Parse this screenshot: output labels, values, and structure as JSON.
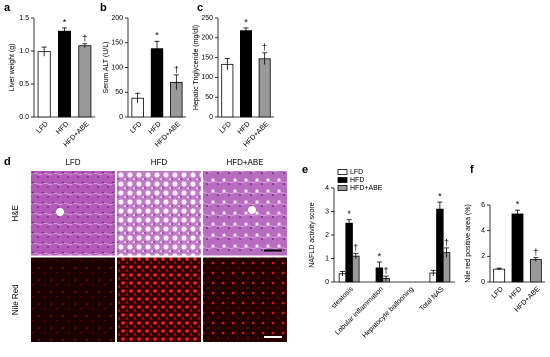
{
  "chart_data": [
    {
      "type": "bar",
      "panel": "a",
      "ylabel": "Liver weight (g)",
      "categories": [
        "LFD",
        "HFD",
        "HFD+ABE"
      ],
      "values": [
        0.99,
        1.3,
        1.08
      ],
      "errors": [
        0.07,
        0.05,
        0.03
      ],
      "annotations": [
        null,
        "*",
        "†"
      ],
      "colors": [
        "#ffffff",
        "#000000",
        "#999999"
      ],
      "ylim": [
        0,
        1.5
      ],
      "yticks": [
        {
          "value": 0,
          "label": "0.0"
        },
        0.5,
        {
          "value": 1,
          "label": "1.0"
        },
        1.5
      ]
    },
    {
      "type": "bar",
      "panel": "b",
      "ylabel": "Serum ALT (U/L)",
      "categories": [
        "LFD",
        "HFD",
        "HFD+ABE"
      ],
      "values": [
        38,
        138,
        70
      ],
      "errors": [
        10,
        15,
        15
      ],
      "annotations": [
        null,
        "*",
        "†"
      ],
      "colors": [
        "#ffffff",
        "#000000",
        "#999999"
      ],
      "ylim": [
        0,
        200
      ],
      "yticks": [
        0,
        50,
        100,
        150,
        200
      ]
    },
    {
      "type": "bar",
      "panel": "c",
      "ylabel": "Hepatic Triglyceride (mg/dl)",
      "categories": [
        "LFD",
        "HFD",
        "HFD+ABE"
      ],
      "values": [
        133,
        218,
        147
      ],
      "errors": [
        15,
        7,
        15
      ],
      "annotations": [
        null,
        "*",
        "†"
      ],
      "colors": [
        "#ffffff",
        "#000000",
        "#999999"
      ],
      "ylim": [
        0,
        250
      ],
      "yticks": [
        0,
        50,
        100,
        150,
        200,
        250
      ]
    },
    {
      "type": "image",
      "panel": "d",
      "columns": [
        "LFD",
        "HFD",
        "HFD+ABE"
      ],
      "rows": [
        "H&E",
        "Nile Red"
      ]
    },
    {
      "type": "grouped-bar",
      "panel": "e",
      "ylabel": "NAFLD activity score",
      "categories": [
        "steatosis",
        "Lobular inflammation",
        "Hepatocyte ballooning",
        "Total NAS"
      ],
      "series": [
        {
          "name": "LFD",
          "color": "#ffffff",
          "values": [
            0.35,
            0,
            0,
            0.38
          ],
          "errors": [
            0.1,
            0,
            0,
            0.12
          ],
          "annotations": [
            null,
            null,
            null,
            null
          ]
        },
        {
          "name": "HFD",
          "color": "#000000",
          "values": [
            2.5,
            0.6,
            0,
            3.1
          ],
          "errors": [
            0.15,
            0.25,
            0,
            0.3
          ],
          "annotations": [
            "*",
            "*",
            null,
            "*"
          ]
        },
        {
          "name": "HFD+ABE",
          "color": "#999999",
          "values": [
            1.1,
            0.15,
            0,
            1.25
          ],
          "errors": [
            0.12,
            0.1,
            0,
            0.2
          ],
          "annotations": [
            "†",
            "†",
            null,
            "†"
          ]
        }
      ],
      "ylim": [
        0,
        4
      ],
      "yticks": [
        0,
        1,
        2,
        3,
        4
      ]
    },
    {
      "type": "bar",
      "panel": "f",
      "ylabel": "Nile red positive area (%)",
      "categories": [
        "LFD",
        "HFD",
        "HFD+ABE"
      ],
      "values": [
        1.0,
        5.3,
        1.75
      ],
      "errors": [
        0.08,
        0.3,
        0.15
      ],
      "annotations": [
        null,
        "*",
        "†"
      ],
      "colors": [
        "#ffffff",
        "#000000",
        "#999999"
      ],
      "ylim": [
        0,
        6
      ],
      "yticks": [
        0,
        2,
        4,
        6
      ]
    }
  ]
}
